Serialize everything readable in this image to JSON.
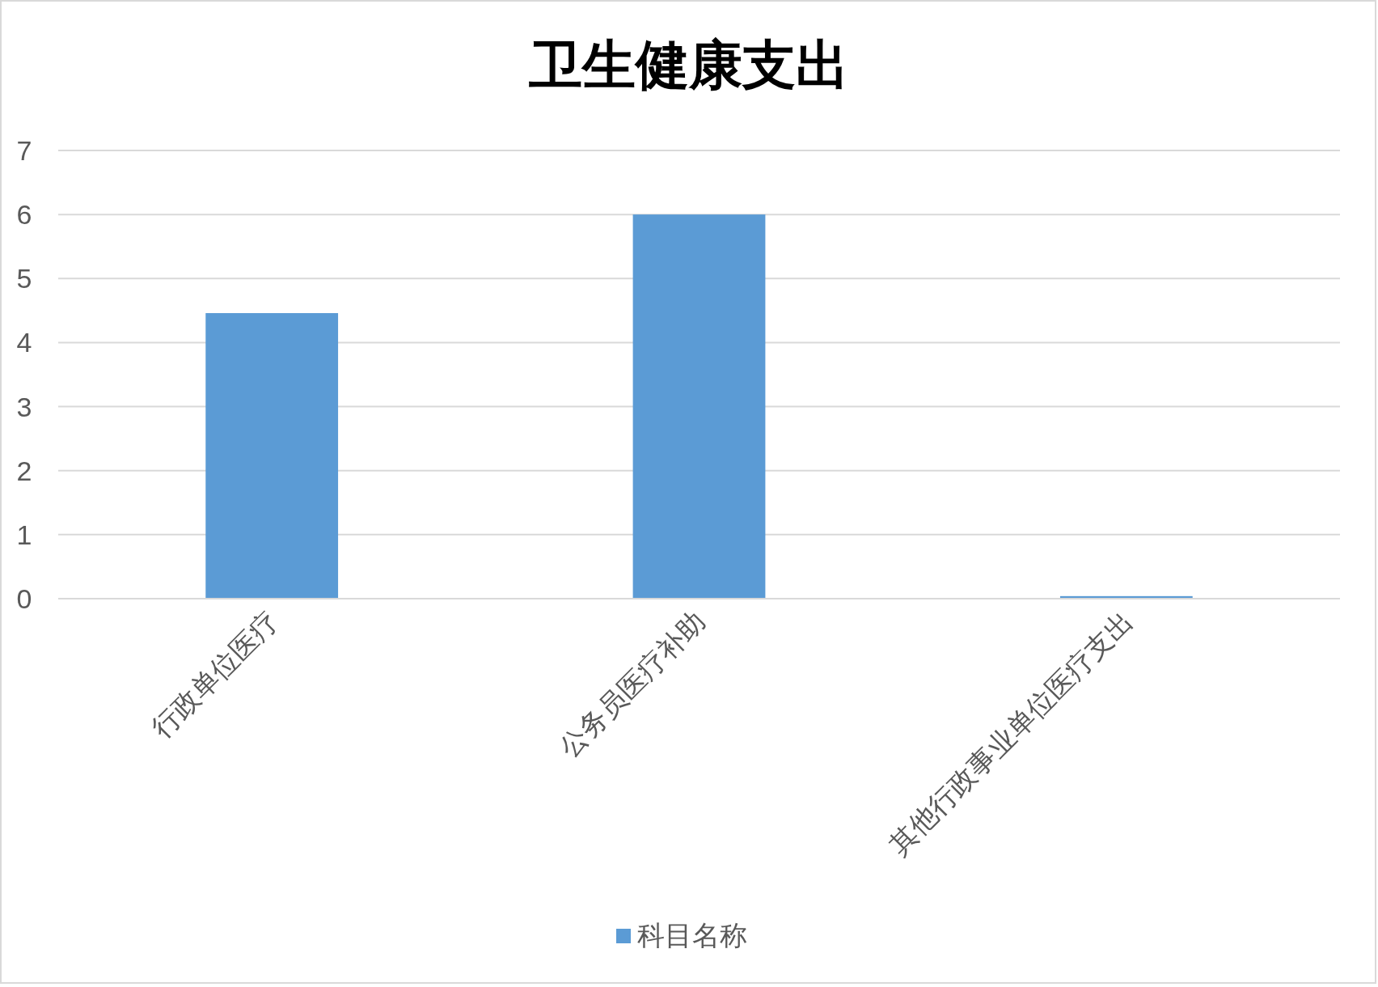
{
  "chart_data": {
    "type": "bar",
    "title": "卫生健康支出",
    "categories": [
      "行政单位医疗",
      "公务员医疗补助",
      "其他行政事业单位医疗支出"
    ],
    "series": [
      {
        "name": "科目名称",
        "color": "#5b9bd5",
        "values": [
          4.46,
          6.0,
          0.04
        ]
      }
    ],
    "ylim": [
      0,
      7
    ],
    "yticks": [
      0,
      1,
      2,
      3,
      4,
      5,
      6,
      7
    ],
    "grid": "y",
    "legend": "bottom"
  }
}
